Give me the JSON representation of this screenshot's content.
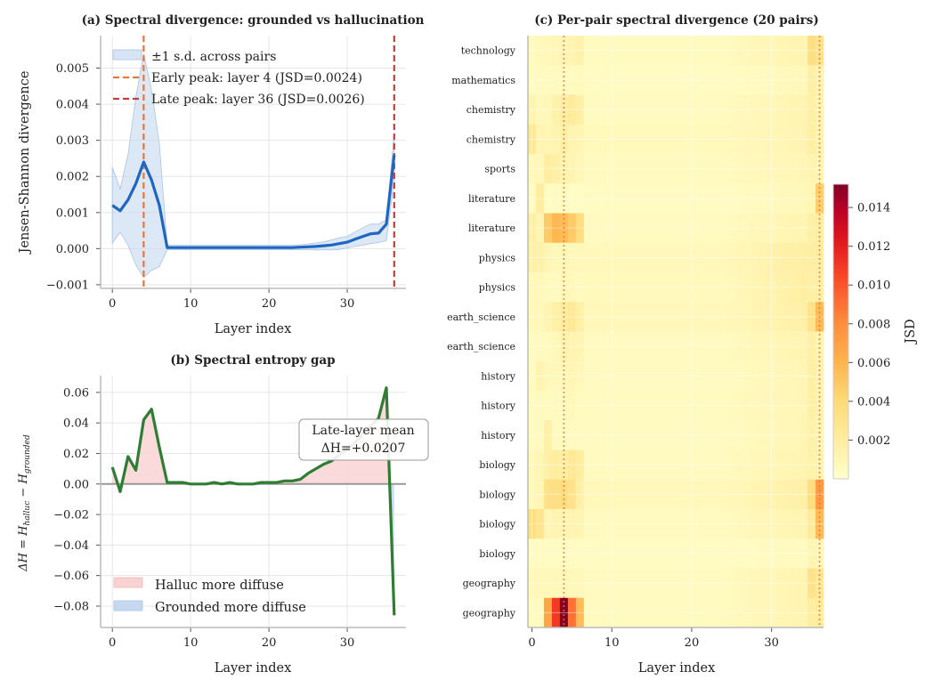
{
  "chart_data": [
    {
      "type": "line",
      "title": "(a) Spectral divergence: grounded vs hallucination",
      "xlabel": "Layer index",
      "ylabel": "Jensen-Shannon divergence",
      "xlim": [
        -1.5,
        37.5
      ],
      "ylim": [
        -0.0011,
        0.0059
      ],
      "xticks": [
        0,
        10,
        20,
        30
      ],
      "yticks": [
        -0.001,
        0.0,
        0.001,
        0.002,
        0.003,
        0.004,
        0.005
      ],
      "ytick_labels": [
        "−0.001",
        "0.000",
        "0.001",
        "0.002",
        "0.003",
        "0.004",
        "0.005"
      ],
      "grid": true,
      "legend_position": "top-left",
      "legend": [
        "±1 s.d. across pairs",
        "Early peak: layer 4 (JSD=0.0024)",
        "Late peak: layer 36 (JSD=0.0026)"
      ],
      "colors": {
        "mean": "#1f66c0",
        "band": "#c5d8ef",
        "early": "#e8773a",
        "late": "#c83c3c"
      },
      "x": [
        0,
        1,
        2,
        3,
        4,
        5,
        6,
        7,
        8,
        9,
        10,
        11,
        12,
        13,
        14,
        15,
        16,
        17,
        18,
        19,
        20,
        21,
        22,
        23,
        24,
        25,
        26,
        27,
        28,
        29,
        30,
        31,
        32,
        33,
        34,
        35,
        36
      ],
      "mean": [
        0.0012,
        0.00105,
        0.00135,
        0.0018,
        0.0024,
        0.0019,
        0.0012,
        3e-05,
        3e-05,
        3e-05,
        3e-05,
        3e-05,
        3e-05,
        3e-05,
        3e-05,
        3e-05,
        3e-05,
        3e-05,
        3e-05,
        3e-05,
        3e-05,
        3e-05,
        3e-05,
        3e-05,
        4e-05,
        5e-05,
        6e-05,
        8e-05,
        0.0001,
        0.00014,
        0.00018,
        0.00026,
        0.00034,
        0.00041,
        0.00043,
        0.00068,
        0.0026
      ],
      "upper": [
        0.00225,
        0.00165,
        0.0026,
        0.0042,
        0.0054,
        0.0044,
        0.0029,
        9e-05,
        9e-05,
        9e-05,
        9e-05,
        9e-05,
        9e-05,
        9e-05,
        9e-05,
        9e-05,
        9e-05,
        9e-05,
        9e-05,
        9e-05,
        9e-05,
        9e-05,
        9e-05,
        9e-05,
        0.00011,
        0.00013,
        0.00016,
        0.00019,
        0.00024,
        0.0003,
        0.00034,
        0.00046,
        0.00058,
        0.00068,
        0.00068,
        0.0008,
        0.0032
      ],
      "lower": [
        0.00015,
        0.00045,
        0.0001,
        -0.00045,
        -0.0008,
        -0.0006,
        -0.0005,
        -3e-05,
        -3e-05,
        -3e-05,
        -3e-05,
        -3e-05,
        -3e-05,
        -3e-05,
        -3e-05,
        -3e-05,
        -3e-05,
        -3e-05,
        -3e-05,
        -3e-05,
        -3e-05,
        -3e-05,
        -3e-05,
        -3e-05,
        -3e-05,
        -3e-05,
        -4e-05,
        -3e-05,
        -4e-05,
        -2e-05,
        2e-05,
        6e-05,
        0.0001,
        0.00014,
        0.00017,
        0.00022,
        0.0019
      ],
      "early_peak_layer": 4,
      "late_peak_layer": 36
    },
    {
      "type": "line",
      "title": "(b) Spectral entropy gap",
      "xlabel": "Layer index",
      "ylabel_parts": [
        "ΔH = H",
        "halluc",
        " − H",
        "grounded"
      ],
      "xlim": [
        -1.5,
        37.5
      ],
      "ylim": [
        -0.094,
        0.071
      ],
      "xticks": [
        0,
        10,
        20,
        30
      ],
      "yticks": [
        -0.08,
        -0.06,
        -0.04,
        -0.02,
        0.0,
        0.02,
        0.04,
        0.06
      ],
      "ytick_labels": [
        "−0.08",
        "−0.06",
        "−0.04",
        "−0.02",
        "0.00",
        "0.02",
        "0.04",
        "0.06"
      ],
      "grid": true,
      "legend_position": "bottom-left",
      "legend": [
        "Halluc more diffuse",
        "Grounded more diffuse"
      ],
      "annotation": [
        "Late-layer mean",
        "ΔH=+0.0207"
      ],
      "colors": {
        "line": "#2e7d32",
        "pos_fill": "#f9d3d3",
        "neg_fill": "#c5d8ef",
        "zero": "#999999"
      },
      "x": [
        0,
        1,
        2,
        3,
        4,
        5,
        6,
        7,
        8,
        9,
        10,
        11,
        12,
        13,
        14,
        15,
        16,
        17,
        18,
        19,
        20,
        21,
        22,
        23,
        24,
        25,
        26,
        27,
        28,
        29,
        30,
        31,
        32,
        33,
        34,
        35,
        36
      ],
      "values": [
        0.011,
        -0.005,
        0.018,
        0.009,
        0.042,
        0.049,
        0.024,
        0.001,
        0.001,
        0.001,
        0.0,
        0.0,
        0.0,
        0.001,
        0.0,
        0.001,
        0.0,
        0.0,
        0.0,
        0.001,
        0.001,
        0.001,
        0.002,
        0.002,
        0.003,
        0.007,
        0.01,
        0.013,
        0.015,
        0.019,
        0.023,
        0.027,
        0.033,
        0.038,
        0.043,
        0.063,
        -0.086
      ]
    },
    {
      "type": "heatmap",
      "title": "(c) Per-pair spectral divergence (20 pairs)",
      "xlabel": "Layer index",
      "xlim": [
        -0.5,
        36.5
      ],
      "xticks": [
        0,
        10,
        20,
        30
      ],
      "colorbar_label": "JSD",
      "colorbar_range": [
        0,
        0.0152
      ],
      "colorbar_ticks": [
        0.002,
        0.004,
        0.006,
        0.008,
        0.01,
        0.012,
        0.014
      ],
      "colorbar_tick_labels": [
        "0.002",
        "0.004",
        "0.006",
        "0.008",
        "0.010",
        "0.012",
        "0.014"
      ],
      "reference_layers": [
        4,
        36
      ],
      "rows": [
        "technology",
        "mathematics",
        "chemistry",
        "chemistry",
        "sports",
        "literature",
        "literature",
        "physics",
        "physics",
        "earth_science",
        "earth_science",
        "history",
        "history",
        "history",
        "biology",
        "biology",
        "biology",
        "biology",
        "geography",
        "geography"
      ],
      "early_layers": [
        [
          0.0006,
          0.0008,
          0.0008,
          0.0009,
          0.001,
          0.0012,
          0.0014
        ],
        [
          0.0004,
          0.0006,
          0.0005,
          0.0006,
          0.0006,
          0.0006,
          0.0007
        ],
        [
          0.0012,
          0.0008,
          0.0009,
          0.0014,
          0.0018,
          0.0022,
          0.0017
        ],
        [
          0.0024,
          0.0012,
          0.001,
          0.0012,
          0.0016,
          0.0012,
          0.001
        ],
        [
          0.0008,
          0.0008,
          0.002,
          0.0016,
          0.0012,
          0.0012,
          0.0009
        ],
        [
          0.0004,
          0.002,
          0.0003,
          0.0004,
          0.0004,
          0.0003,
          0.0003
        ],
        [
          0.0016,
          0.0012,
          0.0048,
          0.0058,
          0.0056,
          0.0048,
          0.0036
        ],
        [
          0.0015,
          0.0015,
          0.001,
          0.0008,
          0.0008,
          0.0008,
          0.0008
        ],
        [
          0.0008,
          0.0008,
          0.0006,
          0.0006,
          0.0008,
          0.0008,
          0.0006
        ],
        [
          0.0008,
          0.0008,
          0.0012,
          0.0016,
          0.002,
          0.0024,
          0.0016
        ],
        [
          0.0006,
          0.0006,
          0.0006,
          0.0008,
          0.0012,
          0.0012,
          0.001
        ],
        [
          0.0006,
          0.0012,
          0.0008,
          0.0008,
          0.0008,
          0.001,
          0.0008
        ],
        [
          0.0006,
          0.0006,
          0.0006,
          0.0006,
          0.0006,
          0.0008,
          0.0006
        ],
        [
          0.0006,
          0.0006,
          0.0016,
          0.0006,
          0.0006,
          0.0006,
          0.0006
        ],
        [
          0.0008,
          0.001,
          0.0016,
          0.002,
          0.0018,
          0.0024,
          0.002
        ],
        [
          0.0008,
          0.001,
          0.0032,
          0.0034,
          0.0036,
          0.003,
          0.0016
        ],
        [
          0.0034,
          0.0028,
          0.001,
          0.0012,
          0.001,
          0.0012,
          0.001
        ],
        [
          0.0004,
          0.0004,
          0.0004,
          0.0004,
          0.0004,
          0.0004,
          0.0004
        ],
        [
          0.0008,
          0.0008,
          0.0008,
          0.0008,
          0.0008,
          0.0008,
          0.0008
        ],
        [
          0.0006,
          0.0006,
          0.0068,
          0.011,
          0.0152,
          0.009,
          0.0056
        ]
      ],
      "mid_level": [
        0.0006,
        0.0004,
        0.0006,
        0.0007,
        0.0006,
        0.0004,
        0.0006,
        0.0008,
        0.0007,
        0.0008,
        0.0006,
        0.0005,
        0.0006,
        0.0005,
        0.0006,
        0.0008,
        0.0006,
        0.0004,
        0.0006,
        0.0006
      ],
      "late_level": [
        0.0012,
        0.0008,
        0.0012,
        0.0012,
        0.001,
        0.0008,
        0.0012,
        0.0018,
        0.0018,
        0.0016,
        0.0012,
        0.001,
        0.001,
        0.001,
        0.0012,
        0.0016,
        0.0012,
        0.0006,
        0.0012,
        0.0012
      ],
      "layer35": [
        0.0034,
        0.0016,
        0.0016,
        0.0018,
        0.0012,
        0.001,
        0.0016,
        0.0018,
        0.0016,
        0.003,
        0.0016,
        0.0016,
        0.0016,
        0.0014,
        0.0014,
        0.0036,
        0.0022,
        0.001,
        0.003,
        0.002
      ],
      "layer36": [
        0.0028,
        0.0012,
        0.0012,
        0.0012,
        0.001,
        0.0046,
        0.0018,
        0.0018,
        0.0016,
        0.0056,
        0.0012,
        0.0012,
        0.0012,
        0.001,
        0.0012,
        0.0072,
        0.0056,
        0.0008,
        0.0024,
        0.002
      ]
    }
  ]
}
